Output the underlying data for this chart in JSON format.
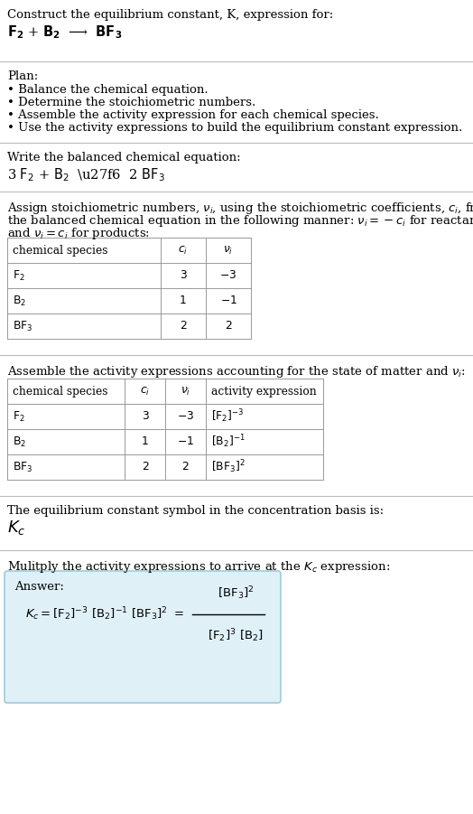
{
  "title_line1": "Construct the equilibrium constant, K, expression for:",
  "plan_header": "Plan:",
  "plan_bullets": [
    "• Balance the chemical equation.",
    "• Determine the stoichiometric numbers.",
    "• Assemble the activity expression for each chemical species.",
    "• Use the activity expressions to build the equilibrium constant expression."
  ],
  "balanced_header": "Write the balanced chemical equation:",
  "kc_header": "The equilibrium constant symbol in the concentration basis is:",
  "multiply_header": "Mulitply the activity expressions to arrive at the $K_c$ expression:",
  "answer_label": "Answer:",
  "bg_color": "#ffffff",
  "answer_bg": "#dff0f7",
  "answer_border": "#90c4d8",
  "text_color": "#000000",
  "sep_color": "#bbbbbb",
  "fs": 9.5,
  "fs_small": 8.8,
  "fs_eq": 10.5,
  "fs_kc_large": 13
}
